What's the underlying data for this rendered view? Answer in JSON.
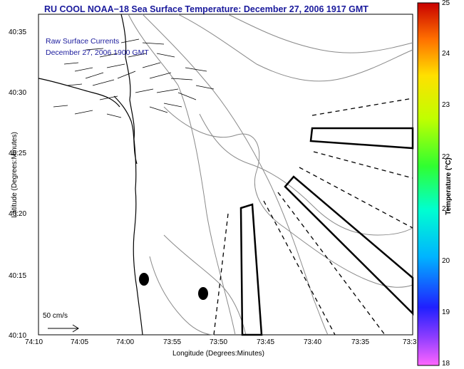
{
  "title": "RU COOL  NOAA−18  Sea Surface Temperature:  December 27, 2006 1917 GMT",
  "legend": {
    "line1": "Raw Surface Currents",
    "line2": "December 27, 2006 1900 GMT"
  },
  "axes": {
    "x_title": "Longitude (Degrees:Minutes)",
    "y_title": "Latitude (Degrees:Minutes)",
    "x_ticks": [
      "74:10",
      "74:05",
      "74:00",
      "73:55",
      "73:50",
      "73:45",
      "73:40",
      "73:35",
      "73:3"
    ],
    "y_ticks": [
      "40:35",
      "40:30",
      "40:25",
      "40:20",
      "40:15",
      "40:10"
    ]
  },
  "colorbar": {
    "title": "Temperature (°C)",
    "ticks": [
      "25",
      "24",
      "23",
      "22",
      "21",
      "20",
      "19",
      "18"
    ],
    "min": 18,
    "max": 25
  },
  "scale_arrow": {
    "label": "50 cm/s"
  },
  "colors": {
    "title": "#1a1a9c",
    "coast": "#000000",
    "bathymetry": "#8a8a8a"
  }
}
